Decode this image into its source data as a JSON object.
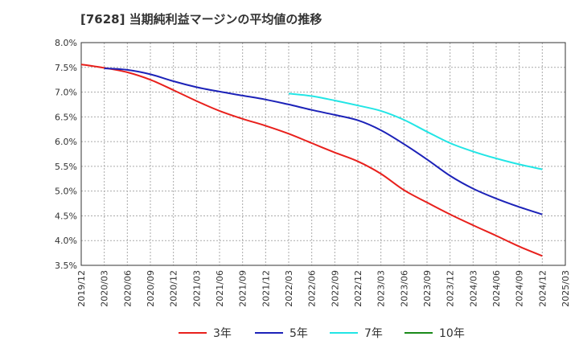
{
  "chart_data": {
    "type": "line",
    "title": "[7628]  当期純利益マージンの平均値の推移",
    "xlabel": "",
    "ylabel": "",
    "ylim": [
      3.5,
      8.0
    ],
    "y_ticks": [
      "8.0%",
      "7.5%",
      "7.0%",
      "6.5%",
      "6.0%",
      "5.5%",
      "5.0%",
      "4.5%",
      "4.0%",
      "3.5%"
    ],
    "x_ticks": [
      "2019/12",
      "2020/03",
      "2020/06",
      "2020/09",
      "2020/12",
      "2021/03",
      "2021/06",
      "2021/09",
      "2021/12",
      "2022/03",
      "2022/06",
      "2022/09",
      "2022/12",
      "2023/03",
      "2023/06",
      "2023/09",
      "2023/12",
      "2024/03",
      "2024/06",
      "2024/09",
      "2024/12",
      "2025/03"
    ],
    "grid": true,
    "legend_position": "bottom",
    "series": [
      {
        "name": "3年",
        "color": "#e8201c",
        "x": [
          "2019/12",
          "2020/03",
          "2020/06",
          "2020/09",
          "2020/12",
          "2021/03",
          "2021/06",
          "2021/09",
          "2021/12",
          "2022/03",
          "2022/06",
          "2022/09",
          "2022/12",
          "2023/03",
          "2023/06",
          "2023/09",
          "2023/12",
          "2024/03",
          "2024/06",
          "2024/09",
          "2024/12"
        ],
        "values": [
          7.56,
          7.49,
          7.4,
          7.25,
          7.04,
          6.82,
          6.62,
          6.46,
          6.32,
          6.16,
          5.97,
          5.78,
          5.6,
          5.35,
          5.02,
          4.77,
          4.53,
          4.31,
          4.1,
          3.88,
          3.69
        ]
      },
      {
        "name": "5年",
        "color": "#1c22b8",
        "x": [
          "2020/03",
          "2020/06",
          "2020/09",
          "2020/12",
          "2021/03",
          "2021/06",
          "2021/09",
          "2021/12",
          "2022/03",
          "2022/06",
          "2022/09",
          "2022/12",
          "2023/03",
          "2023/06",
          "2023/09",
          "2023/12",
          "2024/03",
          "2024/06",
          "2024/09",
          "2024/12"
        ],
        "values": [
          7.48,
          7.45,
          7.36,
          7.22,
          7.1,
          7.01,
          6.93,
          6.85,
          6.75,
          6.64,
          6.54,
          6.43,
          6.23,
          5.95,
          5.64,
          5.31,
          5.05,
          4.85,
          4.68,
          4.53
        ]
      },
      {
        "name": "7年",
        "color": "#22e5e5",
        "x": [
          "2022/03",
          "2022/06",
          "2022/09",
          "2022/12",
          "2023/03",
          "2023/06",
          "2023/09",
          "2023/12",
          "2024/03",
          "2024/06",
          "2024/09",
          "2024/12"
        ],
        "values": [
          6.97,
          6.92,
          6.83,
          6.73,
          6.62,
          6.44,
          6.2,
          5.97,
          5.8,
          5.66,
          5.54,
          5.44
        ]
      },
      {
        "name": "10年",
        "color": "#1a8a1a",
        "x": [],
        "values": []
      }
    ]
  }
}
